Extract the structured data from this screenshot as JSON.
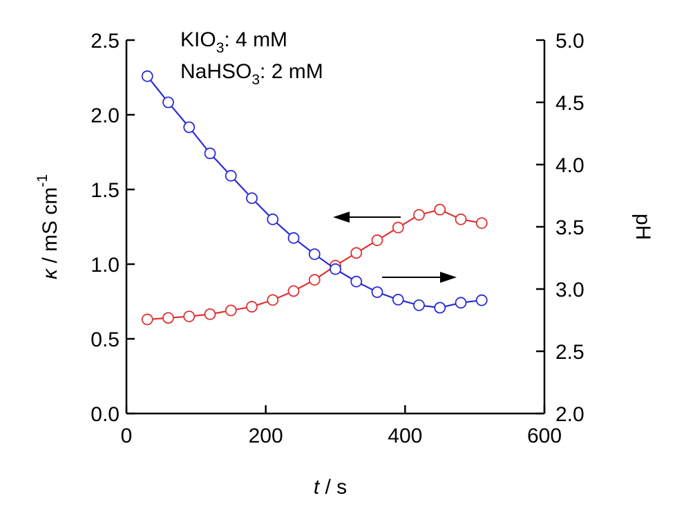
{
  "chart_data": {
    "type": "line",
    "annotations": [
      {
        "main": "KIO",
        "sub": "3",
        "rest": ": 4 mM"
      },
      {
        "main": "NaHSO",
        "sub": "3",
        "rest": ": 2 mM"
      }
    ],
    "x_axis": {
      "label_italic": "t",
      "label_rest": " / s",
      "range": [
        0,
        600
      ],
      "ticks": [
        0,
        200,
        400,
        600
      ],
      "tick_labels": [
        "0",
        "200",
        "400",
        "600"
      ]
    },
    "y_left": {
      "label_italic": "κ",
      "label_rest": " / mS cm",
      "label_sup": "-1",
      "range": [
        0,
        2.5
      ],
      "ticks": [
        0,
        0.5,
        1,
        1.5,
        2,
        2.5
      ],
      "tick_labels": [
        "0.0",
        "0.5",
        "1.0",
        "1.5",
        "2.0",
        "2.5"
      ]
    },
    "y_right": {
      "label": "pH",
      "range": [
        2,
        5
      ],
      "ticks": [
        2,
        2.5,
        3,
        3.5,
        4,
        4.5,
        5
      ],
      "tick_labels": [
        "2.0",
        "2.5",
        "3.0",
        "3.5",
        "4.0",
        "4.5",
        "5.0"
      ]
    },
    "series": [
      {
        "axis": "left",
        "color": "#e03030",
        "x": [
          30,
          60,
          90,
          120,
          150,
          180,
          210,
          240,
          270,
          300,
          330,
          360,
          390,
          420,
          450,
          480,
          510
        ],
        "y": [
          0.63,
          0.64,
          0.65,
          0.665,
          0.69,
          0.715,
          0.76,
          0.82,
          0.895,
          0.99,
          1.075,
          1.16,
          1.245,
          1.33,
          1.365,
          1.3,
          1.275
        ]
      },
      {
        "axis": "right",
        "color": "#2a2ad8",
        "x": [
          30,
          60,
          90,
          120,
          150,
          180,
          210,
          240,
          270,
          300,
          330,
          360,
          390,
          420,
          450,
          480,
          510
        ],
        "y": [
          4.71,
          4.5,
          4.3,
          4.09,
          3.91,
          3.73,
          3.56,
          3.41,
          3.28,
          3.16,
          3.06,
          2.975,
          2.915,
          2.87,
          2.85,
          2.89,
          2.91
        ]
      }
    ],
    "arrows": [
      {
        "direction": "left",
        "points_to": "left-axis"
      },
      {
        "direction": "right",
        "points_to": "right-axis"
      }
    ],
    "grid": false,
    "legend": "none"
  }
}
